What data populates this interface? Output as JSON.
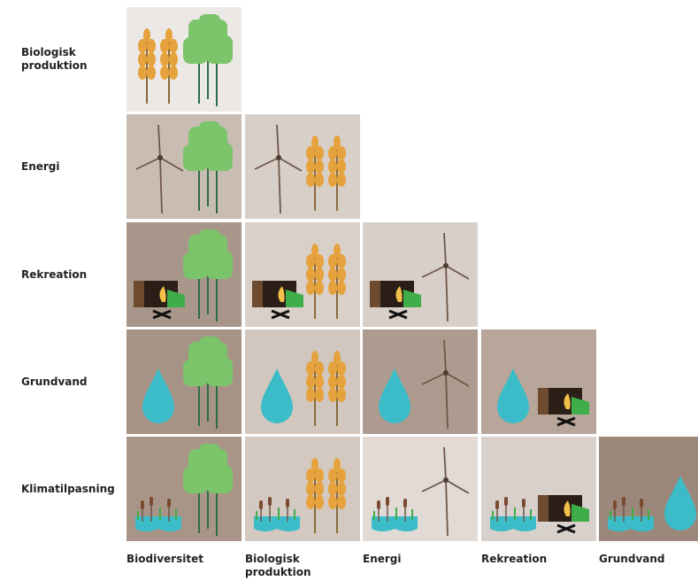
{
  "rows": [
    "Biologisk produktion",
    "Energi",
    "Rekreation",
    "Grundvand",
    "Klimatilpasning"
  ],
  "columns": [
    "Biodiversitet",
    "Biologisk produktion",
    "Energi",
    "Rekreation",
    "Grundvand"
  ]
}
